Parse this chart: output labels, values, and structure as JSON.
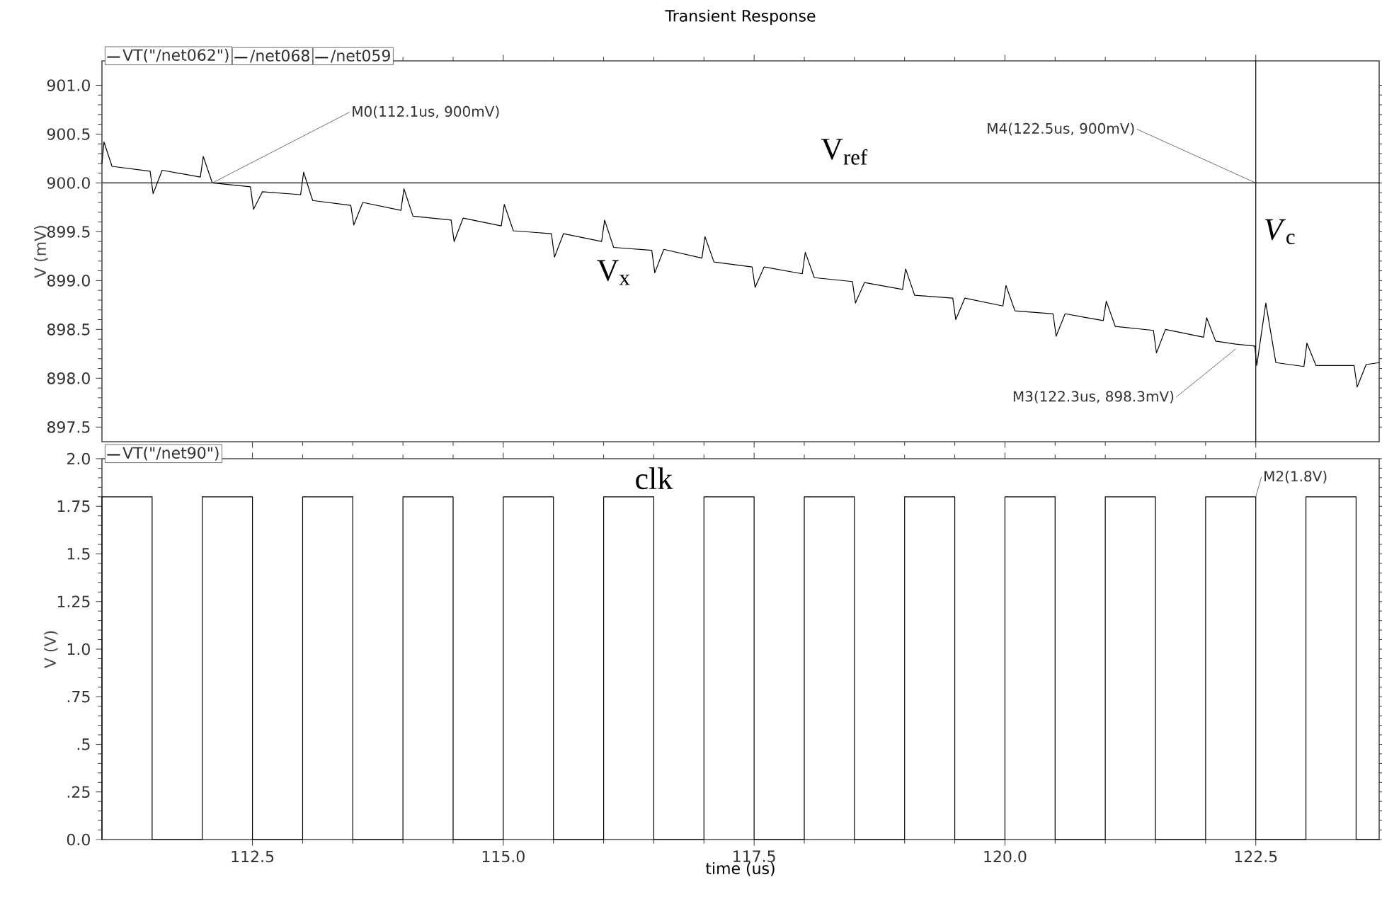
{
  "chart_data": [
    {
      "type": "line",
      "title": "Transient Response",
      "ylabel": "V (mV)",
      "xlim": [
        111.0,
        123.73
      ],
      "ylim": [
        897.35,
        901.25
      ],
      "xticks": [
        112.5,
        115,
        117.5,
        120,
        122.5
      ],
      "yticks": [
        {
          "value": 897.5,
          "label": "897.5"
        },
        {
          "value": 898,
          "label": "898.0"
        },
        {
          "value": 898.5,
          "label": "898.5"
        },
        {
          "value": 899,
          "label": "899.0"
        },
        {
          "value": 899.5,
          "label": "899.5"
        },
        {
          "value": 900,
          "label": "900.0"
        },
        {
          "value": 900.5,
          "label": "900.5"
        },
        {
          "value": 901,
          "label": "901.0"
        }
      ],
      "tick_labels": "y",
      "legend": "top left",
      "series": [
        {
          "name": "VT(\"/net062\")",
          "color": "#000000",
          "x": [
            111.0,
            111.02,
            111.1,
            111.48,
            111.51,
            111.6,
            111.98,
            112.01,
            112.1,
            112.48,
            112.51,
            112.6,
            112.98,
            113.01,
            113.1,
            113.48,
            113.51,
            113.6,
            113.98,
            114.01,
            114.1,
            114.48,
            114.51,
            114.6,
            114.98,
            115.01,
            115.1,
            115.48,
            115.51,
            115.6,
            115.98,
            116.01,
            116.1,
            116.48,
            116.51,
            116.6,
            116.98,
            117.01,
            117.1,
            117.48,
            117.51,
            117.6,
            117.98,
            118.01,
            118.1,
            118.48,
            118.51,
            118.6,
            118.98,
            119.01,
            119.1,
            119.48,
            119.51,
            119.6,
            119.98,
            120.01,
            120.1,
            120.48,
            120.51,
            120.6,
            120.98,
            121.01,
            121.1,
            121.48,
            121.51,
            121.6,
            121.98,
            122.01,
            122.1,
            122.3,
            122.49,
            122.51,
            122.6,
            122.7,
            122.98,
            123.01,
            123.1,
            123.48,
            123.51,
            123.6,
            123.73
          ],
          "values": [
            900.2,
            900.42,
            900.17,
            900.12,
            899.89,
            900.13,
            900.06,
            900.27,
            900.0,
            899.96,
            899.73,
            899.91,
            899.88,
            900.11,
            899.82,
            899.77,
            899.57,
            899.8,
            899.72,
            899.94,
            899.66,
            899.62,
            899.4,
            899.64,
            899.56,
            899.78,
            899.51,
            899.48,
            899.24,
            899.48,
            899.4,
            899.62,
            899.34,
            899.31,
            899.08,
            899.32,
            899.23,
            899.45,
            899.19,
            899.14,
            898.93,
            899.14,
            899.07,
            899.29,
            899.03,
            898.99,
            898.77,
            898.98,
            898.91,
            899.12,
            898.85,
            898.82,
            898.6,
            898.82,
            898.74,
            898.95,
            898.69,
            898.66,
            898.43,
            898.66,
            898.59,
            898.79,
            898.53,
            898.49,
            898.26,
            898.5,
            898.42,
            898.62,
            898.38,
            898.35,
            898.33,
            898.13,
            898.77,
            898.16,
            898.12,
            898.36,
            898.13,
            898.13,
            897.91,
            898.14,
            898.16
          ]
        },
        {
          "name": "/net068",
          "color": "#000000",
          "x": [
            111.0,
            123.73
          ],
          "values": [
            900.0,
            900.0
          ]
        },
        {
          "name": "/net059",
          "color": "#000000",
          "x": [
            122.5,
            122.5
          ],
          "values": [
            897.35,
            901.25
          ]
        }
      ],
      "annotations": [
        {
          "text": "M0(112.1us, 900mV)",
          "x": 112.1,
          "y": 900
        },
        {
          "text": "M4(122.5us, 900mV)",
          "x": 122.5,
          "y": 900
        },
        {
          "text": "M3(122.3us, 898.3mV)",
          "x": 122.3,
          "y": 898.3
        },
        {
          "text": "V$_{ref}$",
          "x": 118.4,
          "y": 900
        },
        {
          "text": "V$_{x}$",
          "x": 116.1,
          "y": 899.3
        },
        {
          "text": "*V*$_{c}$",
          "x": 122.5,
          "y": 899.5
        }
      ]
    },
    {
      "type": "line",
      "xlabel": "time (us)",
      "ylabel": "V (V)",
      "xlim": [
        111.0,
        123.73
      ],
      "ylim": [
        0,
        2.0
      ],
      "xticks": [
        {
          "value": 112.5,
          "label": "112.5"
        },
        {
          "value": 115,
          "label": "115.0"
        },
        {
          "value": 117.5,
          "label": "117.5"
        },
        {
          "value": 120,
          "label": "120.0"
        },
        {
          "value": 122.5,
          "label": "122.5"
        }
      ],
      "yticks": [
        {
          "value": 0,
          "label": "0.0"
        },
        {
          "value": 0.25,
          "label": ".25"
        },
        {
          "value": 0.5,
          "label": ".5"
        },
        {
          "value": 0.75,
          "label": ".75"
        },
        {
          "value": 1.0,
          "label": "1.0"
        },
        {
          "value": 1.25,
          "label": "1.25"
        },
        {
          "value": 1.5,
          "label": "1.5"
        },
        {
          "value": 1.75,
          "label": "1.75"
        },
        {
          "value": 2.0,
          "label": "2.0"
        }
      ],
      "legend": "top left",
      "series": [
        {
          "name": "VT(\"/net90\")",
          "color": "#000000",
          "x": [
            111.0,
            111.0,
            111.5,
            111.5,
            112.0,
            112.0,
            112.5,
            112.5,
            113.0,
            113.0,
            113.5,
            113.5,
            114.0,
            114.0,
            114.5,
            114.5,
            115.0,
            115.0,
            115.5,
            115.5,
            116.0,
            116.0,
            116.5,
            116.5,
            117.0,
            117.0,
            117.5,
            117.5,
            118.0,
            118.0,
            118.5,
            118.5,
            119.0,
            119.0,
            119.5,
            119.5,
            120.0,
            120.0,
            120.5,
            120.5,
            121.0,
            121.0,
            121.5,
            121.5,
            122.0,
            122.0,
            122.5,
            122.5,
            123.0,
            123.0,
            123.5,
            123.5,
            123.73
          ],
          "values": [
            0,
            1.8,
            1.8,
            0,
            0,
            1.8,
            1.8,
            0,
            0,
            1.8,
            1.8,
            0,
            0,
            1.8,
            1.8,
            0,
            0,
            1.8,
            1.8,
            0,
            0,
            1.8,
            1.8,
            0,
            0,
            1.8,
            1.8,
            0,
            0,
            1.8,
            1.8,
            0,
            0,
            1.8,
            1.8,
            0,
            0,
            1.8,
            1.8,
            0,
            0,
            1.8,
            1.8,
            0,
            0,
            1.8,
            1.8,
            0,
            0,
            1.8,
            1.8,
            0,
            0
          ]
        }
      ],
      "annotations": [
        {
          "text": "clk",
          "x": 116.5,
          "y": 1.8
        },
        {
          "text": "M2(1.8V)",
          "x": 122.5,
          "y": 1.8
        }
      ]
    }
  ]
}
